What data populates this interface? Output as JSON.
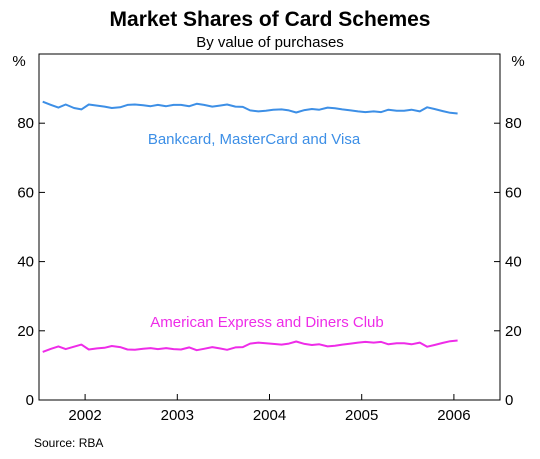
{
  "chart_data": {
    "type": "line",
    "title": "Market Shares of Card Schemes",
    "subtitle": "By value of purchases",
    "y_unit_left": "%",
    "y_unit_right": "%",
    "ylim": [
      0,
      100
    ],
    "xlim": [
      2001.5,
      2006.5
    ],
    "y_ticks": [
      0,
      20,
      40,
      60,
      80
    ],
    "x_tick_labels": [
      "2002",
      "2003",
      "2004",
      "2005",
      "2006"
    ],
    "source": "Source: RBA",
    "grid": false,
    "series": [
      {
        "name": "Bankcard, MasterCard and Visa",
        "color": "#3d8fe6",
        "x": [
          2001.54,
          2001.63,
          2001.71,
          2001.79,
          2001.88,
          2001.96,
          2002.04,
          2002.13,
          2002.21,
          2002.29,
          2002.38,
          2002.46,
          2002.54,
          2002.63,
          2002.71,
          2002.79,
          2002.88,
          2002.96,
          2003.04,
          2003.13,
          2003.21,
          2003.29,
          2003.38,
          2003.46,
          2003.54,
          2003.63,
          2003.71,
          2003.79,
          2003.88,
          2003.96,
          2004.04,
          2004.13,
          2004.21,
          2004.29,
          2004.38,
          2004.46,
          2004.54,
          2004.63,
          2004.71,
          2004.79,
          2004.88,
          2004.96,
          2005.04,
          2005.13,
          2005.21,
          2005.29,
          2005.38,
          2005.46,
          2005.54,
          2005.63,
          2005.71,
          2005.79,
          2005.88,
          2005.96,
          2006.04
        ],
        "values": [
          86.2,
          85.3,
          84.5,
          85.4,
          84.4,
          84.0,
          85.4,
          85.1,
          84.8,
          84.4,
          84.6,
          85.3,
          85.4,
          85.2,
          84.9,
          85.3,
          84.9,
          85.3,
          85.3,
          84.9,
          85.6,
          85.3,
          84.8,
          85.1,
          85.4,
          84.8,
          84.7,
          83.7,
          83.4,
          83.6,
          83.9,
          84.0,
          83.7,
          83.1,
          83.8,
          84.1,
          83.9,
          84.5,
          84.3,
          84.0,
          83.7,
          83.4,
          83.2,
          83.4,
          83.2,
          83.9,
          83.6,
          83.6,
          83.9,
          83.4,
          84.6,
          84.1,
          83.5,
          83.0,
          82.8
        ]
      },
      {
        "name": "American Express and Diners Club",
        "color": "#ee2ce8",
        "x": [
          2001.54,
          2001.63,
          2001.71,
          2001.79,
          2001.88,
          2001.96,
          2002.04,
          2002.13,
          2002.21,
          2002.29,
          2002.38,
          2002.46,
          2002.54,
          2002.63,
          2002.71,
          2002.79,
          2002.88,
          2002.96,
          2003.04,
          2003.13,
          2003.21,
          2003.29,
          2003.38,
          2003.46,
          2003.54,
          2003.63,
          2003.71,
          2003.79,
          2003.88,
          2003.96,
          2004.04,
          2004.13,
          2004.21,
          2004.29,
          2004.38,
          2004.46,
          2004.54,
          2004.63,
          2004.71,
          2004.79,
          2004.88,
          2004.96,
          2005.04,
          2005.13,
          2005.21,
          2005.29,
          2005.38,
          2005.46,
          2005.54,
          2005.63,
          2005.71,
          2005.79,
          2005.88,
          2005.96,
          2006.04
        ],
        "values": [
          13.9,
          14.8,
          15.5,
          14.7,
          15.4,
          16.0,
          14.6,
          14.9,
          15.1,
          15.6,
          15.3,
          14.6,
          14.5,
          14.8,
          15.0,
          14.7,
          15.0,
          14.7,
          14.6,
          15.2,
          14.4,
          14.8,
          15.3,
          14.9,
          14.5,
          15.2,
          15.3,
          16.3,
          16.6,
          16.4,
          16.2,
          16.0,
          16.3,
          16.9,
          16.2,
          15.9,
          16.1,
          15.5,
          15.7,
          16.0,
          16.3,
          16.6,
          16.8,
          16.6,
          16.8,
          16.1,
          16.4,
          16.4,
          16.1,
          16.6,
          15.4,
          15.9,
          16.5,
          17.0,
          17.2
        ]
      }
    ]
  }
}
